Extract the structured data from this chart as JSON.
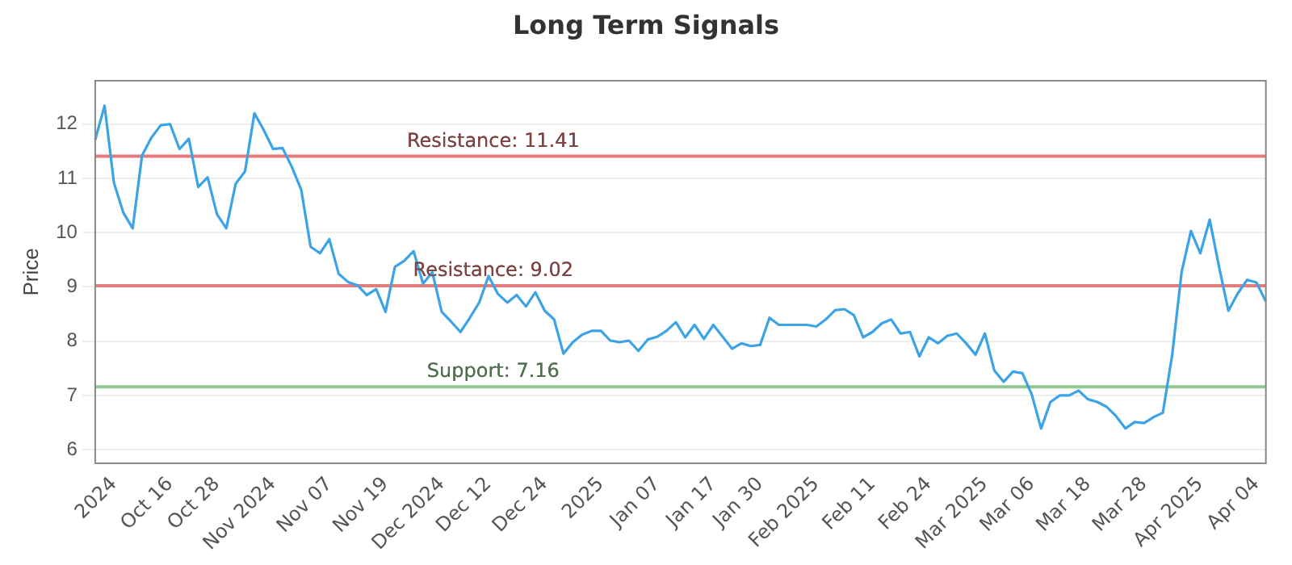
{
  "chart_data": {
    "type": "line",
    "title": "Long Term Signals",
    "ylabel": "Price",
    "categories": [
      null,
      null,
      "2024",
      null,
      null,
      null,
      null,
      null,
      "Oct 16",
      null,
      null,
      null,
      null,
      "Oct 28",
      null,
      null,
      null,
      null,
      null,
      "Nov 2024",
      null,
      null,
      null,
      null,
      null,
      "Nov 07",
      null,
      null,
      null,
      null,
      null,
      "Nov 19",
      null,
      null,
      null,
      null,
      null,
      "Dec 2024",
      null,
      null,
      null,
      null,
      "Dec 12",
      null,
      null,
      null,
      null,
      null,
      "Dec 24",
      null,
      null,
      null,
      null,
      null,
      "2025",
      null,
      null,
      null,
      null,
      null,
      "Jan 07",
      null,
      null,
      null,
      null,
      null,
      "Jan 17",
      null,
      null,
      null,
      null,
      "Jan 30",
      null,
      null,
      null,
      null,
      null,
      "Feb 2025",
      null,
      null,
      null,
      null,
      null,
      "Feb 11",
      null,
      null,
      null,
      null,
      null,
      "Feb 24",
      null,
      null,
      null,
      null,
      null,
      "Mar 2025",
      null,
      null,
      null,
      null,
      "Mar 06",
      null,
      null,
      null,
      null,
      null,
      "Mar 18",
      null,
      null,
      null,
      null,
      null,
      "Mar 28",
      null,
      null,
      null,
      null,
      null,
      "Apr 2025",
      null,
      null,
      null,
      null,
      null,
      "Apr 04",
      null
    ],
    "series": [
      {
        "color": "#3ba3e6",
        "values": [
          11.71,
          12.34,
          10.92,
          10.37,
          10.08,
          11.42,
          11.75,
          11.98,
          12.0,
          11.54,
          11.73,
          10.84,
          11.02,
          10.34,
          10.08,
          10.9,
          11.13,
          12.2,
          11.89,
          11.54,
          11.56,
          11.21,
          10.79,
          9.74,
          9.62,
          9.88,
          9.24,
          9.09,
          9.03,
          8.85,
          8.96,
          8.54,
          9.37,
          9.48,
          9.66,
          9.06,
          9.27,
          8.54,
          8.36,
          8.17,
          8.43,
          8.71,
          9.2,
          8.87,
          8.71,
          8.85,
          8.64,
          8.9,
          8.56,
          8.4,
          7.77,
          7.98,
          8.12,
          8.19,
          8.19,
          8.01,
          7.98,
          8.01,
          7.82,
          8.03,
          8.08,
          8.19,
          8.35,
          8.07,
          8.3,
          8.04,
          8.3,
          8.08,
          7.86,
          7.96,
          7.91,
          7.93,
          8.43,
          8.3,
          8.3,
          8.3,
          8.3,
          8.27,
          8.4,
          8.57,
          8.59,
          8.48,
          8.07,
          8.17,
          8.33,
          8.4,
          8.14,
          8.17,
          7.72,
          8.07,
          7.96,
          8.1,
          8.14,
          7.96,
          7.75,
          8.14,
          7.46,
          7.25,
          7.44,
          7.41,
          7.02,
          6.39,
          6.88,
          7.0,
          7.0,
          7.09,
          6.93,
          6.88,
          6.79,
          6.62,
          6.39,
          6.51,
          6.49,
          6.6,
          6.68,
          7.75,
          9.27,
          10.03,
          9.62,
          10.24,
          9.37,
          8.56,
          8.88,
          9.13,
          9.08,
          8.73
        ]
      }
    ],
    "ylim": [
      5.75,
      12.8
    ],
    "yticks": [
      6,
      7,
      8,
      9,
      10,
      11,
      12
    ],
    "grid": "y",
    "marker": "none",
    "line_style": "solid",
    "legend": false,
    "ref_lines": [
      {
        "axis": "y",
        "value": 11.41,
        "label": "Resistance: 11.41",
        "color": "#e57b7b"
      },
      {
        "axis": "y",
        "value": 9.02,
        "label": "Resistance: 9.02",
        "color": "#e57b7b"
      },
      {
        "axis": "y",
        "value": 7.16,
        "label": "Support: 7.16",
        "color": "#8fc98f"
      }
    ]
  }
}
